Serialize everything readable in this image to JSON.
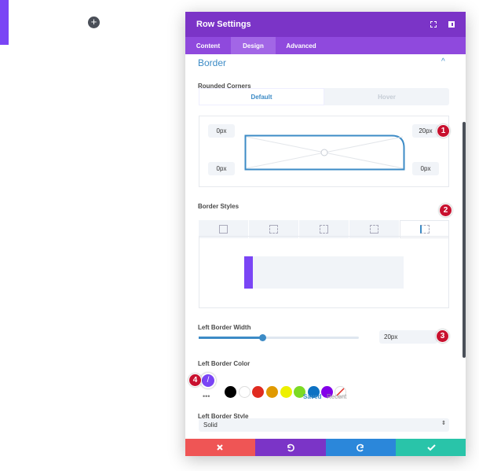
{
  "modal": {
    "title": "Row Settings",
    "tabs": [
      "Content",
      "Design",
      "Advanced"
    ],
    "section": "Border",
    "rounded_corners": {
      "label": "Rounded Corners",
      "modes": [
        "Default",
        "Hover"
      ],
      "corners": [
        "0px",
        "20px",
        "0px",
        "0px"
      ]
    },
    "border_styles": {
      "label": "Border Styles"
    },
    "left_border_width": {
      "label": "Left Border Width",
      "value": "20px"
    },
    "left_border_color": {
      "label": "Left Border Color",
      "palette_tabs": [
        "Saved",
        "Recent"
      ]
    },
    "left_border_style": {
      "label": "Left Border Style",
      "value": "Solid"
    },
    "annotations": [
      "1",
      "2",
      "3",
      "4"
    ]
  }
}
